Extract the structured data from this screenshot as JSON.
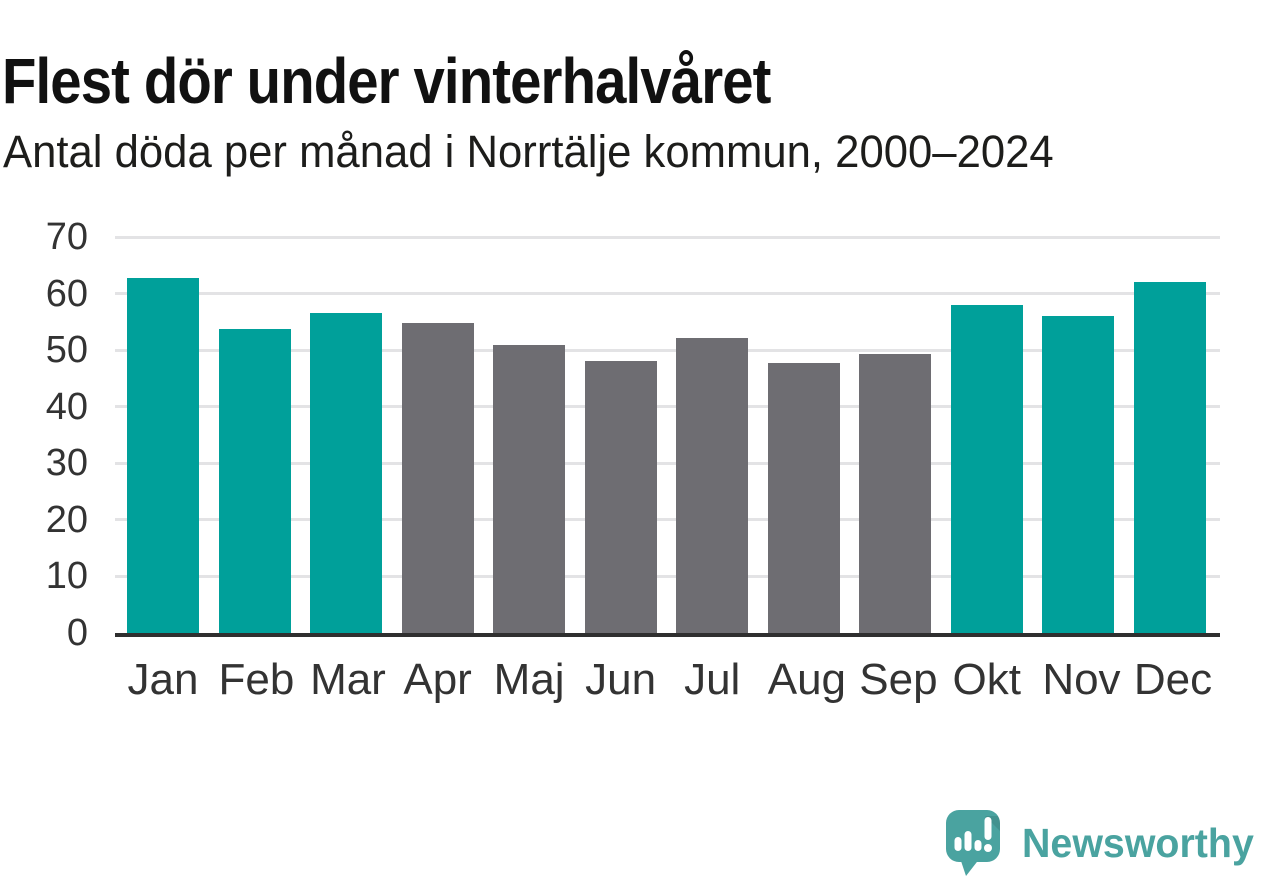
{
  "header": {
    "title": "Flest dör under vinterhalvåret",
    "subtitle": "Antal döda per månad i Norrtälje kommun, 2000–2024"
  },
  "chart_data": {
    "type": "bar",
    "title": "Flest dör under vinterhalvåret",
    "subtitle": "Antal döda per månad i Norrtälje kommun, 2000–2024",
    "categories": [
      "Jan",
      "Feb",
      "Mar",
      "Apr",
      "Maj",
      "Jun",
      "Jul",
      "Aug",
      "Sep",
      "Okt",
      "Nov",
      "Dec"
    ],
    "values": [
      62.7,
      53.7,
      56.6,
      54.8,
      50.9,
      48.1,
      52.2,
      47.8,
      49.3,
      58.0,
      56.1,
      62.1
    ],
    "bar_color_keys": [
      "winter",
      "winter",
      "winter",
      "summer",
      "summer",
      "summer",
      "summer",
      "summer",
      "summer",
      "winter",
      "winter",
      "winter"
    ],
    "xlabel": "",
    "ylabel": "",
    "ylim": [
      0,
      70
    ],
    "yticks": [
      0,
      10,
      20,
      30,
      40,
      50,
      60,
      70
    ],
    "grid": "horizontal",
    "legend_position": "none"
  },
  "colors": {
    "winter": "#00a09a",
    "summer": "#6e6d72",
    "title_text": "#111111",
    "subtitle_text": "#1d1d1b",
    "axis_text": "#333333",
    "gridline": "#e3e3e5",
    "axis_line": "#2f2f2f",
    "logo_teal": "#4aa3a0",
    "background": "#ffffff"
  },
  "footer": {
    "brand": "Newsworthy",
    "logo_icon": "newsworthy-speech-bubble-barchart-exclamation-icon"
  }
}
